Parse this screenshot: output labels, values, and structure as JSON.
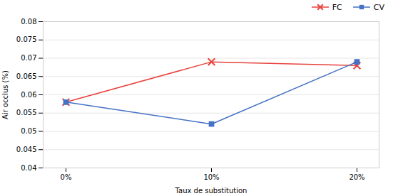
{
  "chart_data": {
    "type": "line",
    "xlabel": "Taux de substitution",
    "ylabel": "Air occlus (%)",
    "categories": [
      "0%",
      "10%",
      "20%"
    ],
    "series": [
      {
        "name": "FC",
        "color": "#e8413c",
        "marker": "x",
        "values": [
          0.058,
          0.069,
          0.068
        ]
      },
      {
        "name": "CV",
        "color": "#4472c4",
        "marker": "square",
        "values": [
          0.058,
          0.052,
          0.069
        ]
      }
    ],
    "ylim": [
      0.04,
      0.08
    ],
    "yticks": [
      0.04,
      0.045,
      0.05,
      0.055,
      0.06,
      0.065,
      0.07,
      0.075,
      0.08
    ],
    "grid": true,
    "legend": "upper right"
  }
}
